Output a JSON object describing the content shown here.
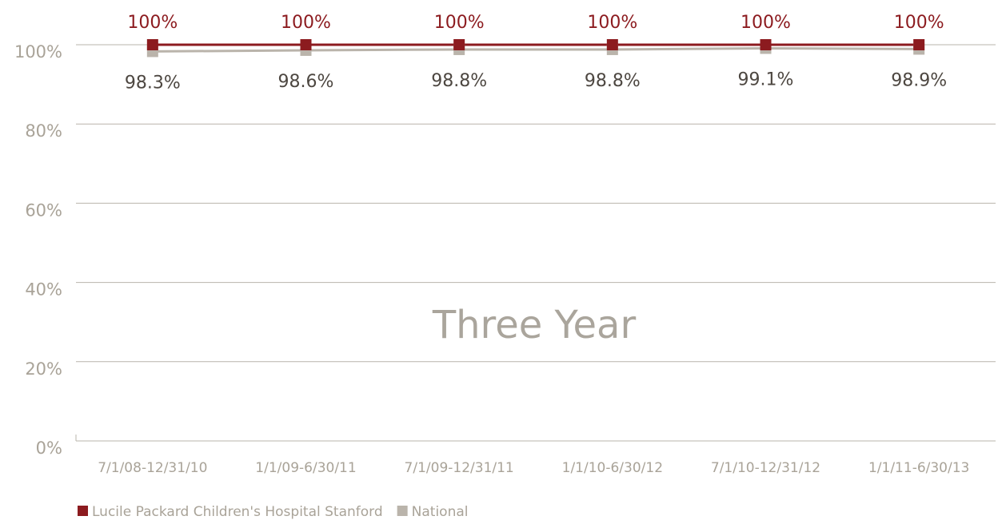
{
  "chart_data": {
    "type": "line",
    "annotation": "Three Year",
    "categories": [
      "7/1/08-12/31/10",
      "1/1/09-6/30/11",
      "7/1/09-12/31/11",
      "1/1/10-6/30/12",
      "7/1/10-12/31/12",
      "1/1/11-6/30/13"
    ],
    "series": [
      {
        "name": "Lucile Packard Children's Hospital Stanford",
        "color": "#8c1b1f",
        "values": [
          100,
          100,
          100,
          100,
          100,
          100
        ],
        "value_labels": [
          "100%",
          "100%",
          "100%",
          "100%",
          "100%",
          "100%"
        ]
      },
      {
        "name": "National",
        "color": "#bab4ab",
        "values": [
          98.3,
          98.6,
          98.8,
          98.8,
          99.1,
          98.9
        ],
        "value_labels": [
          "98.3%",
          "98.6%",
          "98.8%",
          "98.8%",
          "99.1%",
          "98.9%"
        ]
      }
    ],
    "ylim": [
      0,
      100
    ],
    "yticks": [
      {
        "value": 0,
        "label": "0%"
      },
      {
        "value": 20,
        "label": "20%"
      },
      {
        "value": 40,
        "label": "40%"
      },
      {
        "value": 60,
        "label": "60%"
      },
      {
        "value": 80,
        "label": "80%"
      },
      {
        "value": 100,
        "label": "100%"
      }
    ],
    "grid": true,
    "legend": "bottom-left"
  }
}
